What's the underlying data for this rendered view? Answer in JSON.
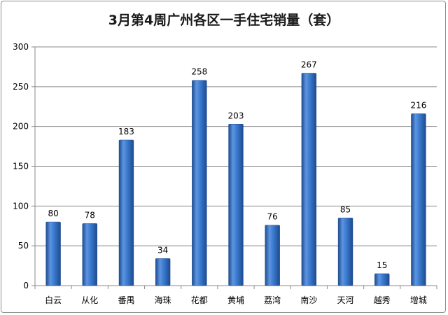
{
  "chart_data": {
    "type": "bar",
    "title": "3月第4周广州各区一手住宅销量（套）",
    "categories": [
      "白云",
      "从化",
      "番禺",
      "海珠",
      "花都",
      "黄埔",
      "荔湾",
      "南沙",
      "天河",
      "越秀",
      "增城"
    ],
    "values": [
      80,
      78,
      183,
      34,
      258,
      203,
      76,
      267,
      85,
      15,
      216
    ],
    "ylim": [
      0,
      300
    ],
    "yticks": [
      0,
      50,
      100,
      150,
      200,
      250,
      300
    ],
    "grid": true,
    "legend": "none",
    "bar_color": "#2e6ec2",
    "bar_highlight": "#6fa3e6",
    "bar_shadow": "#1d4b8f"
  }
}
